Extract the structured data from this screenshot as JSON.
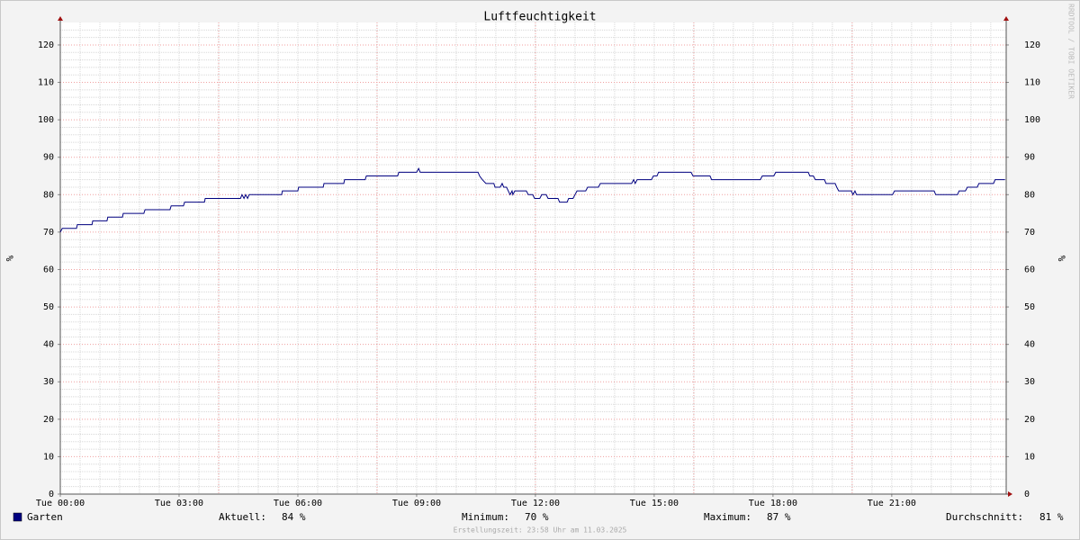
{
  "chart_data": {
    "type": "line",
    "title": "Luftfeuchtigkeit",
    "y_label": "%",
    "watermark": "RRDTOOL / TOBI OETIKER",
    "footer": "Erstellungszeit: 23:58 Uhr am 11.03.2025",
    "xlim": [
      0,
      23.89
    ],
    "xticks": [
      {
        "value": 0,
        "label": "Tue 00:00"
      },
      {
        "value": 3,
        "label": "Tue 03:00"
      },
      {
        "value": 6,
        "label": "Tue 06:00"
      },
      {
        "value": 9,
        "label": "Tue 09:00"
      },
      {
        "value": 12,
        "label": "Tue 12:00"
      },
      {
        "value": 15,
        "label": "Tue 15:00"
      },
      {
        "value": 18,
        "label": "Tue 18:00"
      },
      {
        "value": 21,
        "label": "Tue 21:00"
      }
    ],
    "xgrid": [
      0,
      4,
      8,
      12,
      16,
      20
    ],
    "ylim": [
      0,
      126
    ],
    "yticks": [
      0,
      10,
      20,
      30,
      40,
      50,
      60,
      70,
      80,
      90,
      100,
      110,
      120
    ],
    "grid": true,
    "x": [
      0,
      0.05,
      0.41,
      0.43,
      0.8,
      0.82,
      1.18,
      1.2,
      1.57,
      1.59,
      2.11,
      2.14,
      2.77,
      2.8,
      3.11,
      3.14,
      3.64,
      3.66,
      4.55,
      4.59,
      4.64,
      4.68,
      4.73,
      4.77,
      5.59,
      5.61,
      6,
      6.02,
      6.64,
      6.66,
      7.16,
      7.18,
      7.7,
      7.73,
      8.52,
      8.55,
      9,
      9.05,
      9.09,
      10.55,
      10.59,
      10.66,
      10.75,
      10.95,
      10.98,
      11.11,
      11.16,
      11.2,
      11.27,
      11.36,
      11.41,
      11.43,
      11.48,
      11.77,
      11.82,
      11.93,
      11.98,
      12.11,
      12.16,
      12.27,
      12.32,
      12.57,
      12.61,
      12.8,
      12.84,
      12.95,
      13,
      13.05,
      13.27,
      13.32,
      13.59,
      13.64,
      14.43,
      14.48,
      14.52,
      14.57,
      14.93,
      14.98,
      15.07,
      15.11,
      15.93,
      15.98,
      16.41,
      16.45,
      17.68,
      17.73,
      18.02,
      18.07,
      18.89,
      18.93,
      19.02,
      19.07,
      19.3,
      19.34,
      19.57,
      19.61,
      19.66,
      19.98,
      20.02,
      20.07,
      20.11,
      21.02,
      21.07,
      22.07,
      22.11,
      22.66,
      22.7,
      22.86,
      22.91,
      23.16,
      23.2,
      23.57,
      23.61,
      23.86
    ],
    "series": [
      {
        "name": "Garten",
        "color": "#000080",
        "values": [
          70,
          71,
          71,
          72,
          72,
          73,
          73,
          74,
          74,
          75,
          75,
          76,
          76,
          77,
          77,
          78,
          78,
          79,
          79,
          80,
          79,
          80,
          79,
          80,
          80,
          81,
          81,
          82,
          82,
          83,
          83,
          84,
          84,
          85,
          85,
          86,
          86,
          87,
          86,
          86,
          85,
          84,
          83,
          83,
          82,
          82,
          83,
          82,
          82,
          80,
          81,
          80,
          81,
          81,
          80,
          80,
          79,
          79,
          80,
          80,
          79,
          79,
          78,
          78,
          79,
          79,
          80,
          81,
          81,
          82,
          82,
          83,
          83,
          84,
          83,
          84,
          84,
          85,
          85,
          86,
          86,
          85,
          85,
          84,
          84,
          85,
          85,
          86,
          86,
          85,
          85,
          84,
          84,
          83,
          83,
          82,
          81,
          81,
          80,
          81,
          80,
          80,
          81,
          81,
          80,
          80,
          81,
          81,
          82,
          82,
          83,
          83,
          84,
          84
        ]
      }
    ],
    "stats": [
      {
        "label": "Aktuell:",
        "value": "84 %"
      },
      {
        "label": "Minimum:",
        "value": "70 %"
      },
      {
        "label": "Maximum:",
        "value": "87 %"
      },
      {
        "label": "Durchschnitt:",
        "value": "81 %"
      }
    ]
  }
}
